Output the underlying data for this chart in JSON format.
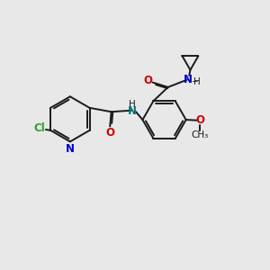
{
  "bg_color": "#e8e8e8",
  "bond_color": "#1a1a1a",
  "cl_color": "#2ca02c",
  "n_color": "#0000cc",
  "o_color": "#cc0000",
  "nh_color": "#007777",
  "lw": 1.4,
  "fs": 8.5,
  "sfs": 7.5,
  "xlim": [
    0,
    10
  ],
  "ylim": [
    0,
    10
  ]
}
